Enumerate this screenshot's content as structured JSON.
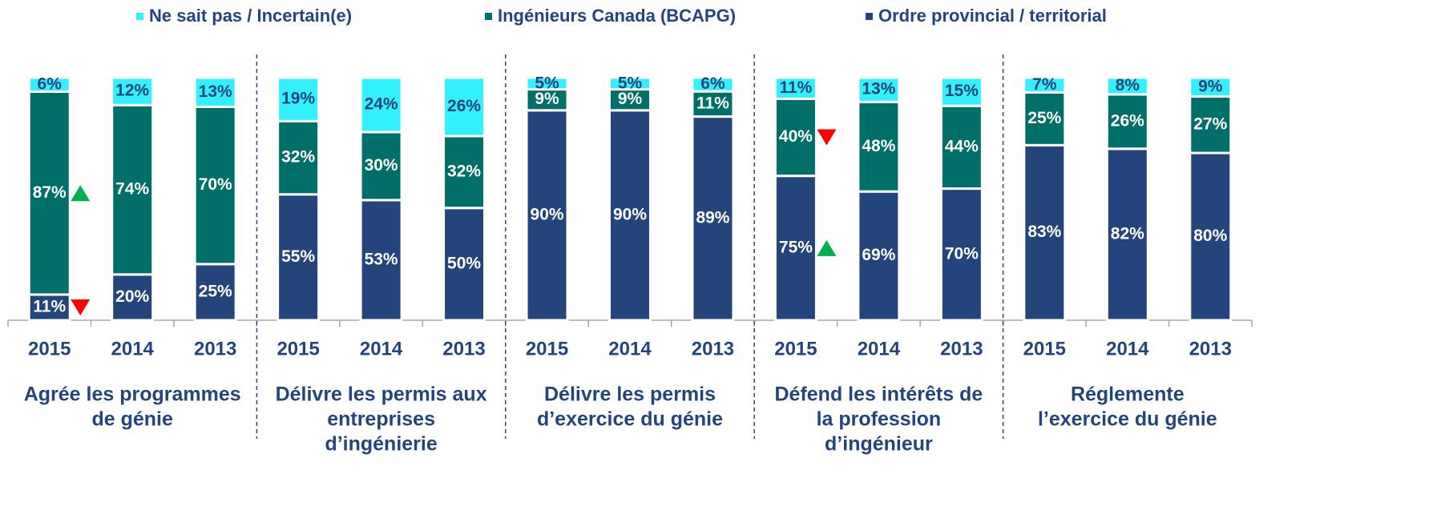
{
  "chart_data": {
    "type": "stacked_bar",
    "stacking": "percent",
    "groups": [
      {
        "label": [
          "Agrée les programmes",
          "de génie"
        ],
        "bars": [
          "2015",
          "2014",
          "2013"
        ]
      },
      {
        "label": [
          "Délivre les permis aux",
          "entreprises",
          "d’ingénierie"
        ],
        "bars": [
          "2015",
          "2014",
          "2013"
        ]
      },
      {
        "label": [
          "Délivre les permis",
          "d’exercice du génie"
        ],
        "bars": [
          "2015",
          "2014",
          "2013"
        ]
      },
      {
        "label": [
          "Défend les intérêts de",
          "la profession",
          "d’ingénieur"
        ],
        "bars": [
          "2015",
          "2014",
          "2013"
        ]
      },
      {
        "label": [
          "Réglemente",
          "l’exercice du génie"
        ],
        "bars": [
          "2015",
          "2014",
          "2013"
        ]
      }
    ],
    "series": [
      {
        "name": "Ordre provincial / territorial",
        "color": "#23457c",
        "label_color": "#ffffff",
        "values": [
          11,
          20,
          25,
          55,
          53,
          50,
          90,
          90,
          89,
          75,
          69,
          70,
          83,
          82,
          80
        ],
        "value_labels": [
          "11%",
          "20%",
          "25%",
          "55%",
          "53%",
          "50%",
          "90%",
          "90%",
          "89%",
          "75%",
          "69%",
          "70%",
          "83%",
          "82%",
          "80%"
        ],
        "changes": [
          "down",
          null,
          null,
          null,
          null,
          null,
          null,
          null,
          null,
          "up",
          null,
          null,
          null,
          null,
          null
        ]
      },
      {
        "name": "Ingénieurs Canada (BCAPG)",
        "color": "#006e69",
        "label_color": "#ffffff",
        "values": [
          87,
          74,
          70,
          32,
          30,
          32,
          9,
          9,
          11,
          40,
          48,
          44,
          25,
          26,
          27
        ],
        "value_labels": [
          "87%",
          "74%",
          "70%",
          "32%",
          "30%",
          "32%",
          "9%",
          "9%",
          "11%",
          "40%",
          "48%",
          "44%",
          "25%",
          "26%",
          "27%"
        ],
        "changes": [
          "up",
          null,
          null,
          null,
          null,
          null,
          null,
          null,
          null,
          "down",
          null,
          null,
          null,
          null,
          null
        ]
      },
      {
        "name": "Ne sait pas / Incertain(e)",
        "color": "#33f0ff",
        "label_color": "#23457c",
        "values": [
          6,
          12,
          13,
          19,
          24,
          26,
          5,
          5,
          6,
          11,
          13,
          15,
          7,
          8,
          9
        ],
        "value_labels": [
          "6%",
          "12%",
          "13%",
          "19%",
          "24%",
          "26%",
          "5%",
          "5%",
          "6%",
          "11%",
          "13%",
          "15%",
          "7%",
          "8%",
          "9%"
        ],
        "changes": [
          null,
          null,
          null,
          null,
          null,
          null,
          null,
          null,
          null,
          null,
          null,
          null,
          null,
          null,
          null
        ]
      }
    ],
    "change_colors": {
      "up": "#00b050",
      "down": "#ff0000"
    }
  }
}
